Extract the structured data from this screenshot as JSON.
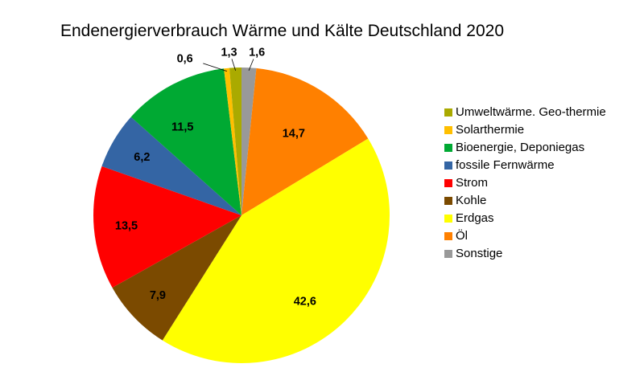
{
  "chart_data": {
    "type": "pie",
    "title": "Endenergierverbrauch Wärme und Kälte Deutschland 2020",
    "legend_position": "right",
    "order": "clockwise from top, starting with Sonstige",
    "slices": [
      {
        "name": "Sonstige",
        "value": 1.6,
        "label": "1,6",
        "color": "#999999"
      },
      {
        "name": "Öl",
        "value": 14.7,
        "label": "14,7",
        "color": "#ff8000"
      },
      {
        "name": "Erdgas",
        "value": 42.6,
        "label": "42,6",
        "color": "#ffff00"
      },
      {
        "name": "Kohle",
        "value": 7.9,
        "label": "7,9",
        "color": "#7b4a00"
      },
      {
        "name": "Strom",
        "value": 13.5,
        "label": "13,5",
        "color": "#ff0000"
      },
      {
        "name": "fossile Fernwärme",
        "value": 6.2,
        "label": "6,2",
        "color": "#3465a4"
      },
      {
        "name": "Bioenergie, Deponiegas",
        "value": 11.5,
        "label": "11,5",
        "color": "#00a933"
      },
      {
        "name": "Solarthermie",
        "value": 0.6,
        "label": "0,6",
        "color": "#ffbf00"
      },
      {
        "name": "Umweltwärme. Geo-thermie",
        "value": 1.3,
        "label": "1,3",
        "color": "#aaaa00"
      }
    ],
    "legend": [
      {
        "name": "Umweltwärme. Geo-thermie",
        "color": "#aaaa00"
      },
      {
        "name": "Solarthermie",
        "color": "#ffbf00"
      },
      {
        "name": "Bioenergie, Deponiegas",
        "color": "#00a933"
      },
      {
        "name": "fossile Fernwärme",
        "color": "#3465a4"
      },
      {
        "name": "Strom",
        "color": "#ff0000"
      },
      {
        "name": "Kohle",
        "color": "#7b4a00"
      },
      {
        "name": "Erdgas",
        "color": "#ffff00"
      },
      {
        "name": "Öl",
        "color": "#ff8000"
      },
      {
        "name": "Sonstige",
        "color": "#999999"
      }
    ]
  }
}
